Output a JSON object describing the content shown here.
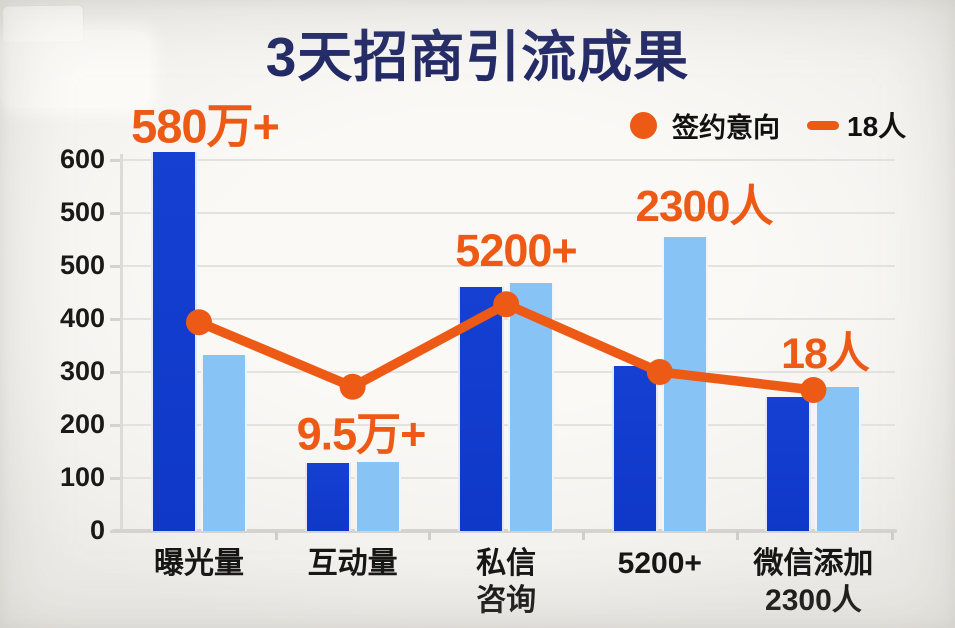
{
  "title": "3天招商引流成果",
  "legend": {
    "point_label": "签约意向",
    "line_label": "18人"
  },
  "colors": {
    "title_navy": "#232a66",
    "orange": "#ed5a16",
    "bar_dark_blue": "#1540d2",
    "bar_light_blue": "#87c3f4",
    "grid_gray": "#e3e2df",
    "axis_gray": "#d4d3d0",
    "text_black": "#161616"
  },
  "chart_data": {
    "type": "bar+line",
    "title": "3天招商引流成果",
    "categories": [
      "曝光量",
      "互动量",
      "私信\n咨询",
      "5200+",
      "微信添加\n2300人"
    ],
    "y_tick_labels_bottom_to_top": [
      "0",
      "100",
      "200",
      "300",
      "400",
      "500",
      "500",
      "600"
    ],
    "ylim": [
      0,
      700
    ],
    "grid": true,
    "legend_position": "top-right",
    "series": [
      {
        "name": "dark-blue-bars",
        "type": "bar",
        "values": [
          715,
          128,
          460,
          311,
          253
        ]
      },
      {
        "name": "light-blue-bars",
        "type": "bar",
        "values": [
          332,
          130,
          468,
          555,
          272
        ]
      },
      {
        "name": "签约意向",
        "type": "line",
        "values": [
          394,
          272,
          428,
          300,
          266
        ]
      }
    ],
    "annotations": [
      {
        "text": "580万+",
        "category_index": 0
      },
      {
        "text": "9.5万+",
        "category_index": 1
      },
      {
        "text": "5200+",
        "category_index": 2
      },
      {
        "text": "2300人",
        "category_index": 3
      },
      {
        "text": "18人",
        "category_index": 4
      }
    ]
  }
}
